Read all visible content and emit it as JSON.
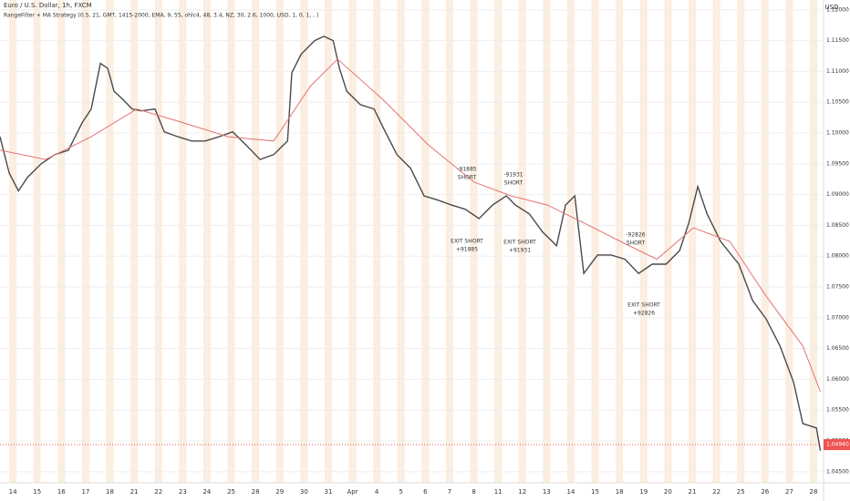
{
  "chart_data": {
    "type": "line",
    "title": "Euro / U.S. Dollar, 1h, FXCM",
    "subtitle": "RangeFilter + MA Strategy (0.5, 21, GMT, 1415-2000, EMA, 9, 55, ohlc4, 48, 3.4, NZ, 30, 2.6, 1000, USD, 1, 0, 1, , )",
    "y_axis_label": "USD",
    "xlim": [
      -0.53,
      33.3
    ],
    "ylim": [
      1.0432,
      1.1216
    ],
    "xticks": [
      {
        "value": 0,
        "label": "14"
      },
      {
        "value": 1,
        "label": "15"
      },
      {
        "value": 2,
        "label": "16"
      },
      {
        "value": 3,
        "label": "17"
      },
      {
        "value": 4,
        "label": "18"
      },
      {
        "value": 5,
        "label": "21"
      },
      {
        "value": 6,
        "label": "22"
      },
      {
        "value": 7,
        "label": "23"
      },
      {
        "value": 8,
        "label": "24"
      },
      {
        "value": 9,
        "label": "25"
      },
      {
        "value": 10,
        "label": "28"
      },
      {
        "value": 11,
        "label": "29"
      },
      {
        "value": 12,
        "label": "30"
      },
      {
        "value": 13,
        "label": "31"
      },
      {
        "value": 14,
        "label": "Apr"
      },
      {
        "value": 15,
        "label": "4"
      },
      {
        "value": 16,
        "label": "5"
      },
      {
        "value": 17,
        "label": "6"
      },
      {
        "value": 18,
        "label": "7"
      },
      {
        "value": 19,
        "label": "8"
      },
      {
        "value": 20,
        "label": "11"
      },
      {
        "value": 21,
        "label": "12"
      },
      {
        "value": 22,
        "label": "13"
      },
      {
        "value": 23,
        "label": "14"
      },
      {
        "value": 24,
        "label": "15"
      },
      {
        "value": 25,
        "label": "18"
      },
      {
        "value": 26,
        "label": "19"
      },
      {
        "value": 27,
        "label": "20"
      },
      {
        "value": 28,
        "label": "21"
      },
      {
        "value": 29,
        "label": "22"
      },
      {
        "value": 30,
        "label": "25"
      },
      {
        "value": 31,
        "label": "26"
      },
      {
        "value": 32,
        "label": "27"
      },
      {
        "value": 33,
        "label": "28"
      }
    ],
    "yticks": [
      {
        "value": 1.12,
        "label": "1.12000"
      },
      {
        "value": 1.115,
        "label": "1.11500"
      },
      {
        "value": 1.11,
        "label": "1.11000"
      },
      {
        "value": 1.105,
        "label": "1.10500"
      },
      {
        "value": 1.1,
        "label": "1.10000"
      },
      {
        "value": 1.095,
        "label": "1.09500"
      },
      {
        "value": 1.09,
        "label": "1.09000"
      },
      {
        "value": 1.085,
        "label": "1.08500"
      },
      {
        "value": 1.08,
        "label": "1.08000"
      },
      {
        "value": 1.075,
        "label": "1.07500"
      },
      {
        "value": 1.07,
        "label": "1.07000"
      },
      {
        "value": 1.065,
        "label": "1.06500"
      },
      {
        "value": 1.06,
        "label": "1.06000"
      },
      {
        "value": 1.055,
        "label": "1.05500"
      },
      {
        "value": 1.05,
        "label": "1.05000"
      },
      {
        "value": 1.045,
        "label": "1.04500"
      }
    ],
    "series": [
      {
        "color": "#4a4a4a",
        "x": [
          -0.53,
          -0.15,
          0.23,
          0.6,
          1.17,
          1.73,
          2.29,
          2.86,
          3.23,
          3.61,
          3.91,
          4.17,
          4.55,
          4.92,
          5.3,
          5.86,
          6.24,
          6.8,
          7.37,
          7.93,
          8.5,
          9.06,
          9.62,
          10.19,
          10.75,
          11.32,
          11.5,
          11.88,
          12.44,
          12.82,
          13.2,
          13.46,
          13.76,
          14.32,
          14.89,
          15.26,
          15.83,
          16.39,
          16.95,
          17.52,
          18.08,
          18.65,
          19.21,
          19.77,
          20.34,
          20.71,
          21.28,
          21.84,
          22.41,
          22.78,
          23.16,
          23.53,
          24.1,
          24.66,
          25.23,
          25.79,
          26.35,
          26.92,
          27.48,
          27.86,
          28.23,
          28.61,
          29.17,
          29.92,
          30.49,
          31.05,
          31.62,
          32.18,
          32.56,
          33.12,
          33.28
        ],
        "values": [
          1.0994,
          1.0935,
          1.0906,
          1.0928,
          1.095,
          1.0965,
          1.0972,
          1.1017,
          1.1039,
          1.1113,
          1.1105,
          1.1068,
          1.1054,
          1.1039,
          1.1036,
          1.1039,
          1.1002,
          1.0994,
          1.0987,
          1.0987,
          1.0994,
          1.1002,
          1.098,
          1.0957,
          1.0965,
          1.0987,
          1.1098,
          1.1128,
          1.115,
          1.1157,
          1.115,
          1.1105,
          1.1068,
          1.1046,
          1.1039,
          1.1009,
          1.0965,
          1.0943,
          1.0898,
          1.0891,
          1.0883,
          1.0876,
          1.0861,
          1.0883,
          1.0898,
          1.0883,
          1.0869,
          1.0839,
          1.0817,
          1.0883,
          1.0898,
          1.0772,
          1.0802,
          1.0802,
          1.0795,
          1.0772,
          1.0787,
          1.0787,
          1.0809,
          1.0854,
          1.0913,
          1.0869,
          1.0824,
          1.0787,
          1.0728,
          1.0698,
          1.0654,
          1.0595,
          1.0528,
          1.0521,
          1.0484
        ]
      },
      {
        "color": "#e57373",
        "x": [
          -0.53,
          1.35,
          3.23,
          5.11,
          6.99,
          8.87,
          10.75,
          12.26,
          13.38,
          15.26,
          17.14,
          19.02,
          20.53,
          22.03,
          23.53,
          25.04,
          26.54,
          28.05,
          29.55,
          31.05,
          32.56,
          33.28
        ],
        "values": [
          1.0972,
          1.0957,
          1.0994,
          1.1039,
          1.1017,
          1.0994,
          1.0987,
          1.1076,
          1.112,
          1.1054,
          1.098,
          1.092,
          1.0898,
          1.0883,
          1.0854,
          1.0824,
          1.0795,
          1.0846,
          1.0824,
          1.0735,
          1.0654,
          1.058
        ]
      }
    ],
    "annotations": [
      {
        "text": [
          "-91885",
          "SHORT"
        ]
      },
      {
        "text": [
          "EXIT SHORT",
          "+91885"
        ]
      },
      {
        "text": [
          "-91931",
          "SHORT"
        ]
      },
      {
        "text": [
          "EXIT SHORT",
          "+91931"
        ]
      },
      {
        "text": [
          "-92826",
          "SHORT"
        ]
      },
      {
        "text": [
          "EXIT SHORT",
          "+92826"
        ]
      }
    ],
    "last_price": {
      "value": 1.0494,
      "label": "1.04940"
    }
  }
}
